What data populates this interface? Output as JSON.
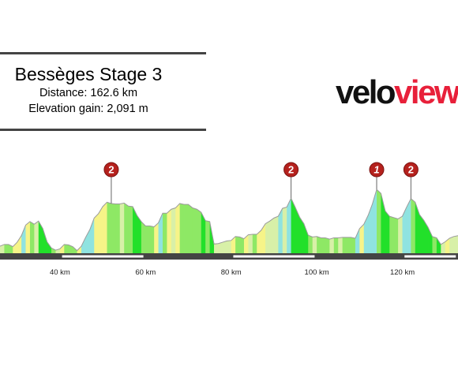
{
  "header": {
    "title": "Bessèges Stage 3",
    "distance": "Distance: 162.6 km",
    "elevation_gain": "Elevation gain: 2,091 m"
  },
  "logo": {
    "part1": "velo",
    "part2": "view",
    "color_dark": "#111111",
    "color_accent": "#e8203a"
  },
  "chart_data": {
    "type": "area",
    "title": "Bessèges Stage 3",
    "xlabel": "",
    "ylabel": "",
    "x_unit": "km",
    "xlim": [
      26,
      133
    ],
    "ylim": [
      0,
      950
    ],
    "xticks": [
      {
        "value": 40,
        "label": "40 km"
      },
      {
        "value": 60,
        "label": "60 km"
      },
      {
        "value": 80,
        "label": "80 km"
      },
      {
        "value": 100,
        "label": "100 km"
      },
      {
        "value": 120,
        "label": "120 km"
      }
    ],
    "profile": [
      [
        26,
        80
      ],
      [
        27,
        100
      ],
      [
        28,
        100
      ],
      [
        29,
        75
      ],
      [
        30,
        125
      ],
      [
        31,
        200
      ],
      [
        32,
        320
      ],
      [
        33,
        360
      ],
      [
        34,
        330
      ],
      [
        35,
        365
      ],
      [
        36,
        280
      ],
      [
        37,
        130
      ],
      [
        38,
        60
      ],
      [
        39,
        35
      ],
      [
        40,
        50
      ],
      [
        41,
        100
      ],
      [
        42,
        95
      ],
      [
        43,
        75
      ],
      [
        44,
        30
      ],
      [
        45,
        80
      ],
      [
        46,
        180
      ],
      [
        47,
        270
      ],
      [
        48,
        400
      ],
      [
        49,
        450
      ],
      [
        50,
        530
      ],
      [
        51,
        580
      ],
      [
        52,
        565
      ],
      [
        53,
        560
      ],
      [
        54,
        560
      ],
      [
        55,
        570
      ],
      [
        56,
        535
      ],
      [
        57,
        530
      ],
      [
        58,
        430
      ],
      [
        59,
        360
      ],
      [
        60,
        310
      ],
      [
        61,
        310
      ],
      [
        62,
        300
      ],
      [
        63,
        345
      ],
      [
        64,
        455
      ],
      [
        65,
        455
      ],
      [
        66,
        500
      ],
      [
        67,
        515
      ],
      [
        68,
        565
      ],
      [
        69,
        555
      ],
      [
        70,
        555
      ],
      [
        71,
        515
      ],
      [
        72,
        500
      ],
      [
        73,
        465
      ],
      [
        74,
        370
      ],
      [
        75,
        360
      ],
      [
        76,
        105
      ],
      [
        77,
        110
      ],
      [
        78,
        125
      ],
      [
        79,
        140
      ],
      [
        80,
        145
      ],
      [
        81,
        190
      ],
      [
        82,
        185
      ],
      [
        83,
        165
      ],
      [
        84,
        210
      ],
      [
        85,
        215
      ],
      [
        86,
        215
      ],
      [
        87,
        260
      ],
      [
        88,
        335
      ],
      [
        89,
        365
      ],
      [
        90,
        400
      ],
      [
        91,
        420
      ],
      [
        92,
        510
      ],
      [
        93,
        525
      ],
      [
        94,
        625
      ],
      [
        95,
        520
      ],
      [
        96,
        410
      ],
      [
        97,
        335
      ],
      [
        98,
        205
      ],
      [
        99,
        185
      ],
      [
        100,
        190
      ],
      [
        101,
        175
      ],
      [
        102,
        175
      ],
      [
        103,
        160
      ],
      [
        104,
        175
      ],
      [
        105,
        175
      ],
      [
        106,
        180
      ],
      [
        107,
        180
      ],
      [
        108,
        180
      ],
      [
        109,
        170
      ],
      [
        110,
        280
      ],
      [
        111,
        330
      ],
      [
        112,
        430
      ],
      [
        113,
        560
      ],
      [
        114,
        725
      ],
      [
        115,
        680
      ],
      [
        116,
        480
      ],
      [
        117,
        420
      ],
      [
        118,
        405
      ],
      [
        119,
        390
      ],
      [
        120,
        420
      ],
      [
        121,
        525
      ],
      [
        122,
        620
      ],
      [
        123,
        580
      ],
      [
        124,
        440
      ],
      [
        125,
        375
      ],
      [
        126,
        295
      ],
      [
        127,
        190
      ],
      [
        128,
        175
      ],
      [
        129,
        100
      ],
      [
        130,
        130
      ],
      [
        131,
        170
      ],
      [
        132,
        190
      ],
      [
        133,
        200
      ]
    ],
    "climbs": [
      {
        "category": "2",
        "km": 52
      },
      {
        "category": "2",
        "km": 94
      },
      {
        "category": "1",
        "km": 114
      },
      {
        "category": "2",
        "km": 122
      }
    ],
    "gradient_colors": [
      "#22e02a",
      "#8ee865",
      "#d8f0a8",
      "#f6f488",
      "#8fe3e0"
    ]
  }
}
